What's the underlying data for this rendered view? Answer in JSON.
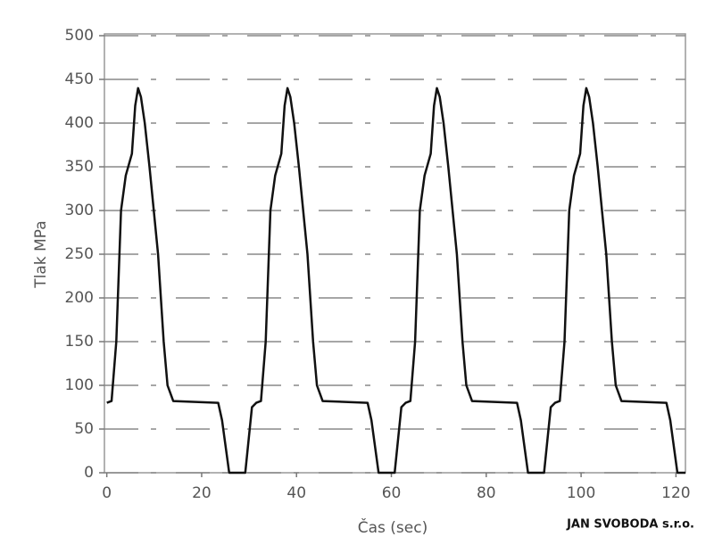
{
  "chart_data": {
    "type": "line",
    "xlabel": "Čas (sec)",
    "ylabel": "Tlak MPa",
    "watermark": "JAN SVOBODA s.r.o.",
    "xlim": [
      -0.5,
      122
    ],
    "ylim": [
      0,
      500
    ],
    "xticks": [
      0,
      20,
      40,
      60,
      80,
      100,
      120
    ],
    "yticks": [
      0,
      50,
      100,
      150,
      200,
      250,
      300,
      350,
      400,
      450,
      500
    ],
    "grid": true,
    "color": "#111",
    "x": [
      0,
      1,
      2,
      3,
      4,
      5.3,
      6,
      6.6,
      7.2,
      8,
      9,
      10.8,
      12,
      12.8,
      14,
      23.5,
      24.3,
      25.8,
      29.2,
      30.6,
      31.5,
      32.5,
      33.5,
      34.5,
      35.5,
      36.8,
      37.5,
      38.1,
      38.7,
      39.5,
      40.5,
      42.3,
      43.5,
      44.3,
      45.5,
      55,
      55.8,
      57.3,
      60.7,
      62.1,
      63,
      64,
      65,
      66,
      67,
      68.3,
      69,
      69.6,
      70.2,
      71,
      72,
      73.8,
      75,
      75.8,
      77,
      86.5,
      87.3,
      88.8,
      92.2,
      93.6,
      94.5,
      95.5,
      96.5,
      97.5,
      98.5,
      99.8,
      100.5,
      101.1,
      101.7,
      102.5,
      103.5,
      105.3,
      106.5,
      107.3,
      108.5,
      118,
      118.8,
      120.3,
      122
    ],
    "values": [
      80,
      82,
      150,
      300,
      340,
      365,
      420,
      440,
      430,
      400,
      350,
      250,
      150,
      100,
      82,
      80,
      60,
      0,
      0,
      75,
      80,
      82,
      150,
      300,
      340,
      365,
      420,
      440,
      430,
      400,
      350,
      250,
      150,
      100,
      82,
      80,
      60,
      0,
      0,
      75,
      80,
      82,
      150,
      300,
      340,
      365,
      420,
      440,
      430,
      400,
      350,
      250,
      150,
      100,
      82,
      80,
      60,
      0,
      0,
      75,
      80,
      82,
      150,
      300,
      340,
      365,
      420,
      440,
      430,
      400,
      350,
      250,
      150,
      100,
      82,
      80,
      60,
      0,
      0
    ]
  }
}
